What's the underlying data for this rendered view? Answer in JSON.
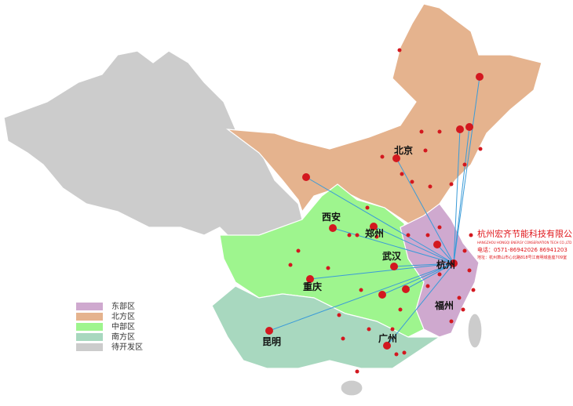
{
  "map": {
    "cities": [
      "北京",
      "西安",
      "郑州",
      "武汉",
      "杭州",
      "重庆",
      "福州",
      "昆明",
      "广州"
    ],
    "legend": [
      {
        "label": "东部区",
        "color": "#cfa9cf"
      },
      {
        "label": "北方区",
        "color": "#e5b38e"
      },
      {
        "label": "中部区",
        "color": "#9ef58e"
      },
      {
        "label": "南方区",
        "color": "#a8d8bf"
      },
      {
        "label": "待开发区",
        "color": "#cccccc"
      }
    ],
    "company": {
      "name": "杭州宏齐节能科技有限公司",
      "name_en": "HANGZHOU HONGQI ENERGY CONSERVATION TECH CO.,LTD",
      "phone": "电话：0571-86942026 86941203",
      "address": "地址：杭州萧山市心北路818号江南明城金座709室"
    }
  }
}
